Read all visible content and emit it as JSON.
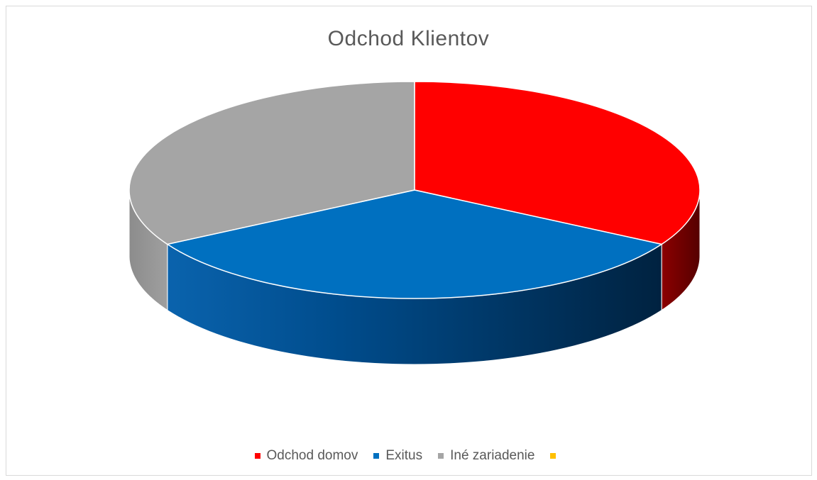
{
  "chart_data": {
    "type": "pie",
    "title": "Odchod Klientov",
    "style": "3d",
    "legend_position": "bottom",
    "categories": [
      "Odchod domov",
      "Exitus",
      "Iné zariadenie",
      ""
    ],
    "values": [
      1,
      1,
      1,
      0
    ],
    "colors": [
      "#ff0000",
      "#0070c0",
      "#a5a5a5",
      "#ffc000"
    ],
    "side_colors": [
      "#7a0000",
      "#003a6b",
      "#8a8a8a",
      "#b38600"
    ]
  }
}
